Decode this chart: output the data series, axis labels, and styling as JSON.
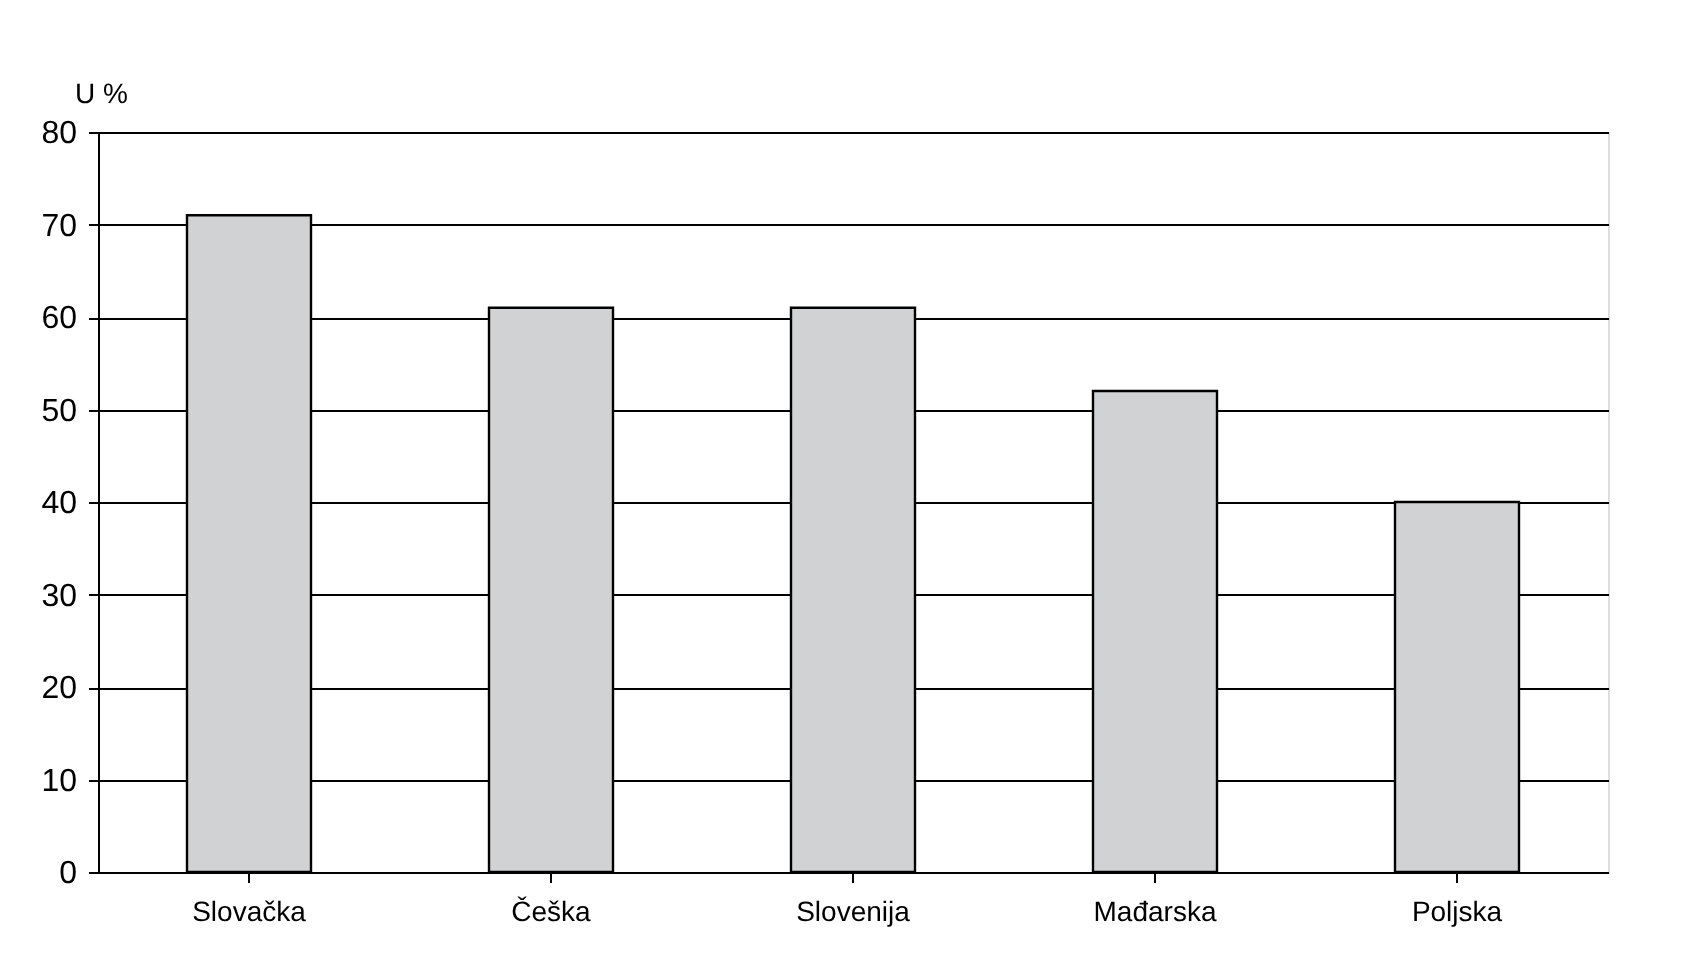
{
  "chart_data": {
    "type": "bar",
    "ylabel": "U %",
    "categories": [
      "Slovačka",
      "Češka",
      "Slovenija",
      "Mađarska",
      "Poljska"
    ],
    "values": [
      71,
      61,
      61,
      52,
      40
    ],
    "color": "#d1d2d4",
    "ylim": [
      0,
      80
    ],
    "yticks": [
      0,
      10,
      20,
      30,
      40,
      50,
      60,
      70,
      80
    ],
    "grid": "y"
  }
}
